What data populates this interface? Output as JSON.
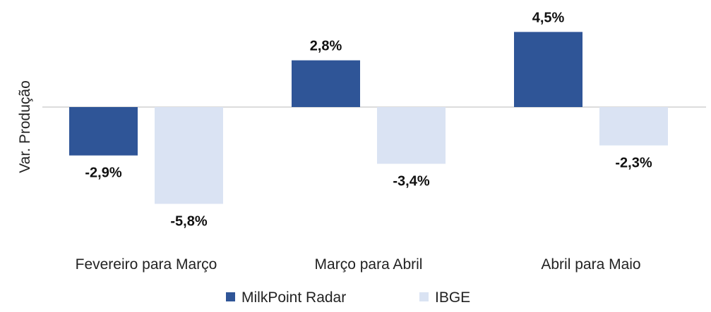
{
  "chart_data": {
    "type": "bar",
    "ylabel": "Var. Produção",
    "categories": [
      "Fevereiro para Março",
      "Março para Abril",
      "Abril para Maio"
    ],
    "series": [
      {
        "name": "MilkPoint Radar",
        "values": [
          -2.9,
          2.8,
          4.5
        ],
        "labels": [
          "-2,9%",
          "2,8%",
          "4,5%"
        ],
        "color": "#2F5597"
      },
      {
        "name": "IBGE",
        "values": [
          -5.8,
          -3.4,
          -2.3
        ],
        "labels": [
          "-5,8%",
          "-3,4%",
          "-2,3%"
        ],
        "color": "#DAE3F3"
      }
    ],
    "ylim": [
      -6.3,
      5.2
    ],
    "grid": false,
    "legend": "bottom"
  }
}
